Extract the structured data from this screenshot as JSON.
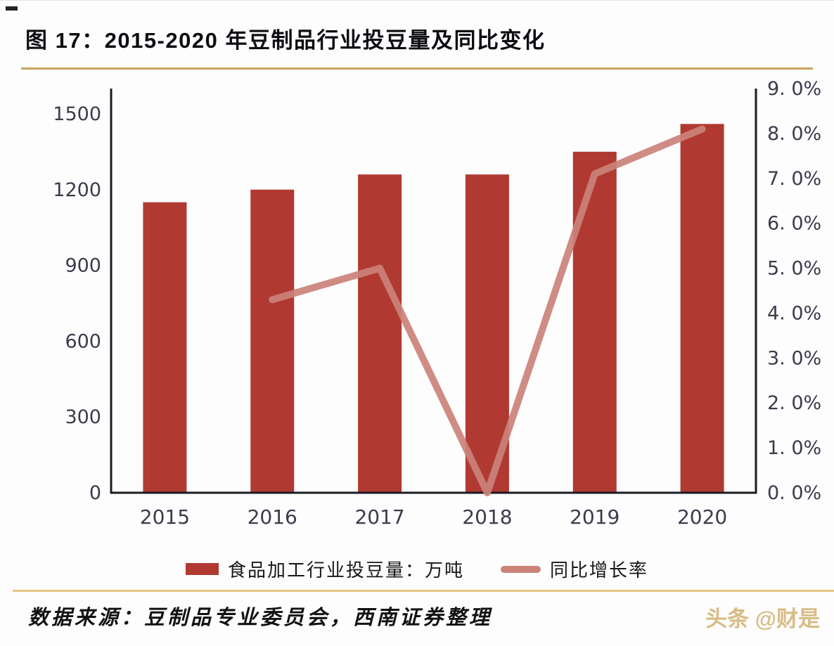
{
  "page": {
    "title": "图 17：2015-2020 年豆制品行业投豆量及同比变化",
    "footer_source": "数据来源：豆制品专业委员会，西南证券整理",
    "watermark": "头条 @财是"
  },
  "colors": {
    "bar": "#B03A32",
    "line": "#CB8279",
    "axis_line": "#1B1B22",
    "axis_text": "#3B3B4D",
    "title_rule": "#C9A35B",
    "footer_rule": "#E6C87F",
    "watermark": "#D8BC85"
  },
  "legend": {
    "items": [
      {
        "type": "bar",
        "label": "食品加工行业投豆量：万吨"
      },
      {
        "type": "line",
        "label": "同比增长率"
      }
    ]
  },
  "chart_data": {
    "type": "bar+line combo",
    "categories": [
      "2015",
      "2016",
      "2017",
      "2018",
      "2019",
      "2020"
    ],
    "series": [
      {
        "name": "食品加工行业投豆量：万吨",
        "type": "bar",
        "axis": "left",
        "values": [
          1150,
          1200,
          1260,
          1260,
          1350,
          1460
        ]
      },
      {
        "name": "同比增长率",
        "type": "line",
        "axis": "right",
        "unit": "%",
        "values": [
          null,
          4.3,
          5.0,
          0.0,
          7.1,
          8.1
        ]
      }
    ],
    "left_axis": {
      "min": 0,
      "max": 1600,
      "tick_step": 300,
      "tick_labels": [
        "0",
        "300",
        "600",
        "900",
        "1200",
        "1500"
      ],
      "tick_values": [
        0,
        300,
        600,
        900,
        1200,
        1500
      ]
    },
    "right_axis": {
      "min": 0,
      "max": 9,
      "tick_step": 1,
      "tick_labels": [
        "0. 0%",
        "1. 0%",
        "2. 0%",
        "3. 0%",
        "4. 0%",
        "5. 0%",
        "6. 0%",
        "7. 0%",
        "8. 0%",
        "9. 0%"
      ],
      "tick_values": [
        0,
        1,
        2,
        3,
        4,
        5,
        6,
        7,
        8,
        9
      ]
    },
    "grid": false,
    "legend_position": "bottom"
  }
}
